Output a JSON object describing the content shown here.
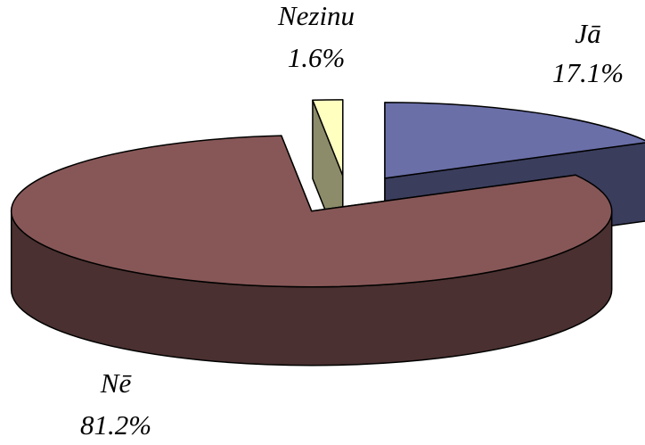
{
  "chart_data": {
    "type": "pie3d",
    "categories": [
      "Jā",
      "Nē",
      "Nezinu"
    ],
    "values": [
      17.1,
      81.2,
      1.6
    ],
    "value_labels": [
      "17.1%",
      "81.2%",
      "1.6%"
    ],
    "colors": [
      "#6a6fa8",
      "#875757",
      "#ffffc0"
    ]
  }
}
